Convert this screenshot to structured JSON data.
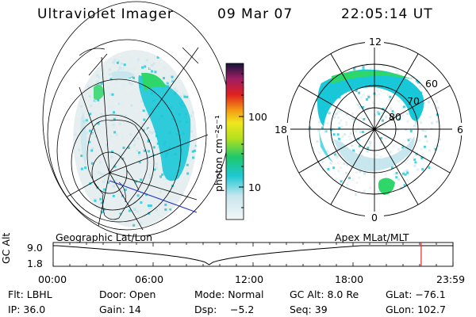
{
  "header": {
    "instrument": "Ultraviolet Imager",
    "date": "09 Mar 07",
    "time": "22:05:14 UT"
  },
  "colorbar": {
    "unit_label": "photon cm⁻²s⁻¹",
    "ticks": [
      "100",
      "10"
    ]
  },
  "polar": {
    "mlt_labels": [
      "12",
      "18",
      "6",
      "0"
    ],
    "lat_labels": [
      "60",
      "70",
      "80"
    ]
  },
  "geo_label": "Geographic Lat/Lon",
  "apex_label": "Apex MLat/MLT",
  "timeline": {
    "ylabel": "GC Alt",
    "y_ticks": [
      "9.0",
      "1.8"
    ],
    "x_ticks": [
      "00:00",
      "06:00",
      "12:00",
      "18:00",
      "23:59"
    ],
    "current_marker_hours": 22.09
  },
  "status": {
    "row1": [
      "Flt: LBHL",
      "Door: Open",
      "Mode: Normal",
      "GC Alt: 8.0 Re",
      "GLat: −76.1"
    ],
    "row2": [
      "IP: 36.0",
      "Gain: 14",
      "Dsp:",
      "−5.2",
      "Seq: 39",
      "GLon: 102.7"
    ]
  },
  "colors": {
    "aurora_main": "#19c8d8",
    "aurora_bright": "#2fd66a",
    "aurora_faint": "#c8e6ee",
    "marker": "#e0282a",
    "coastline": "#2030c0"
  }
}
